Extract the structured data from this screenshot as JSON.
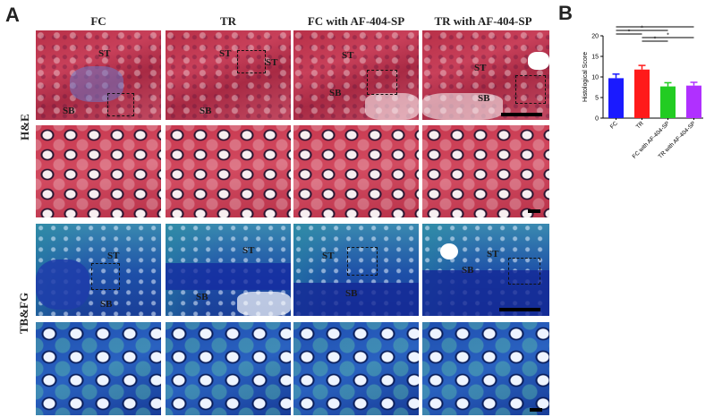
{
  "panel_a_letter": "A",
  "panel_b_letter": "B",
  "columns": [
    "FC",
    "TR",
    "FC with AF-404-SP",
    "TR with AF-404-SP"
  ],
  "rows": [
    "H&E",
    "TB&FG"
  ],
  "tissue_labels": {
    "st": "ST",
    "sb": "SB"
  },
  "chart_data": {
    "type": "bar",
    "categories": [
      "FC",
      "TR",
      "FC with AF-404-SP",
      "TR with AF-404-SP"
    ],
    "values": [
      9.7,
      11.8,
      7.7,
      7.9
    ],
    "errors": [
      1.0,
      1.0,
      0.9,
      0.8
    ],
    "colors": [
      "#1a1aff",
      "#ff1a1a",
      "#22cc22",
      "#b030ff"
    ],
    "ylabel": "Histological Score",
    "ylim": [
      0,
      20
    ],
    "yticks": [
      0,
      5,
      10,
      15,
      20
    ],
    "significance": [
      {
        "from": 0,
        "to": 3,
        "label": "*"
      },
      {
        "from": 0,
        "to": 2,
        "label": "*"
      },
      {
        "from": 0,
        "to": 1,
        "label": "*"
      },
      {
        "from": 1,
        "to": 3,
        "label": "*"
      },
      {
        "from": 1,
        "to": 2,
        "label": "*"
      }
    ]
  }
}
